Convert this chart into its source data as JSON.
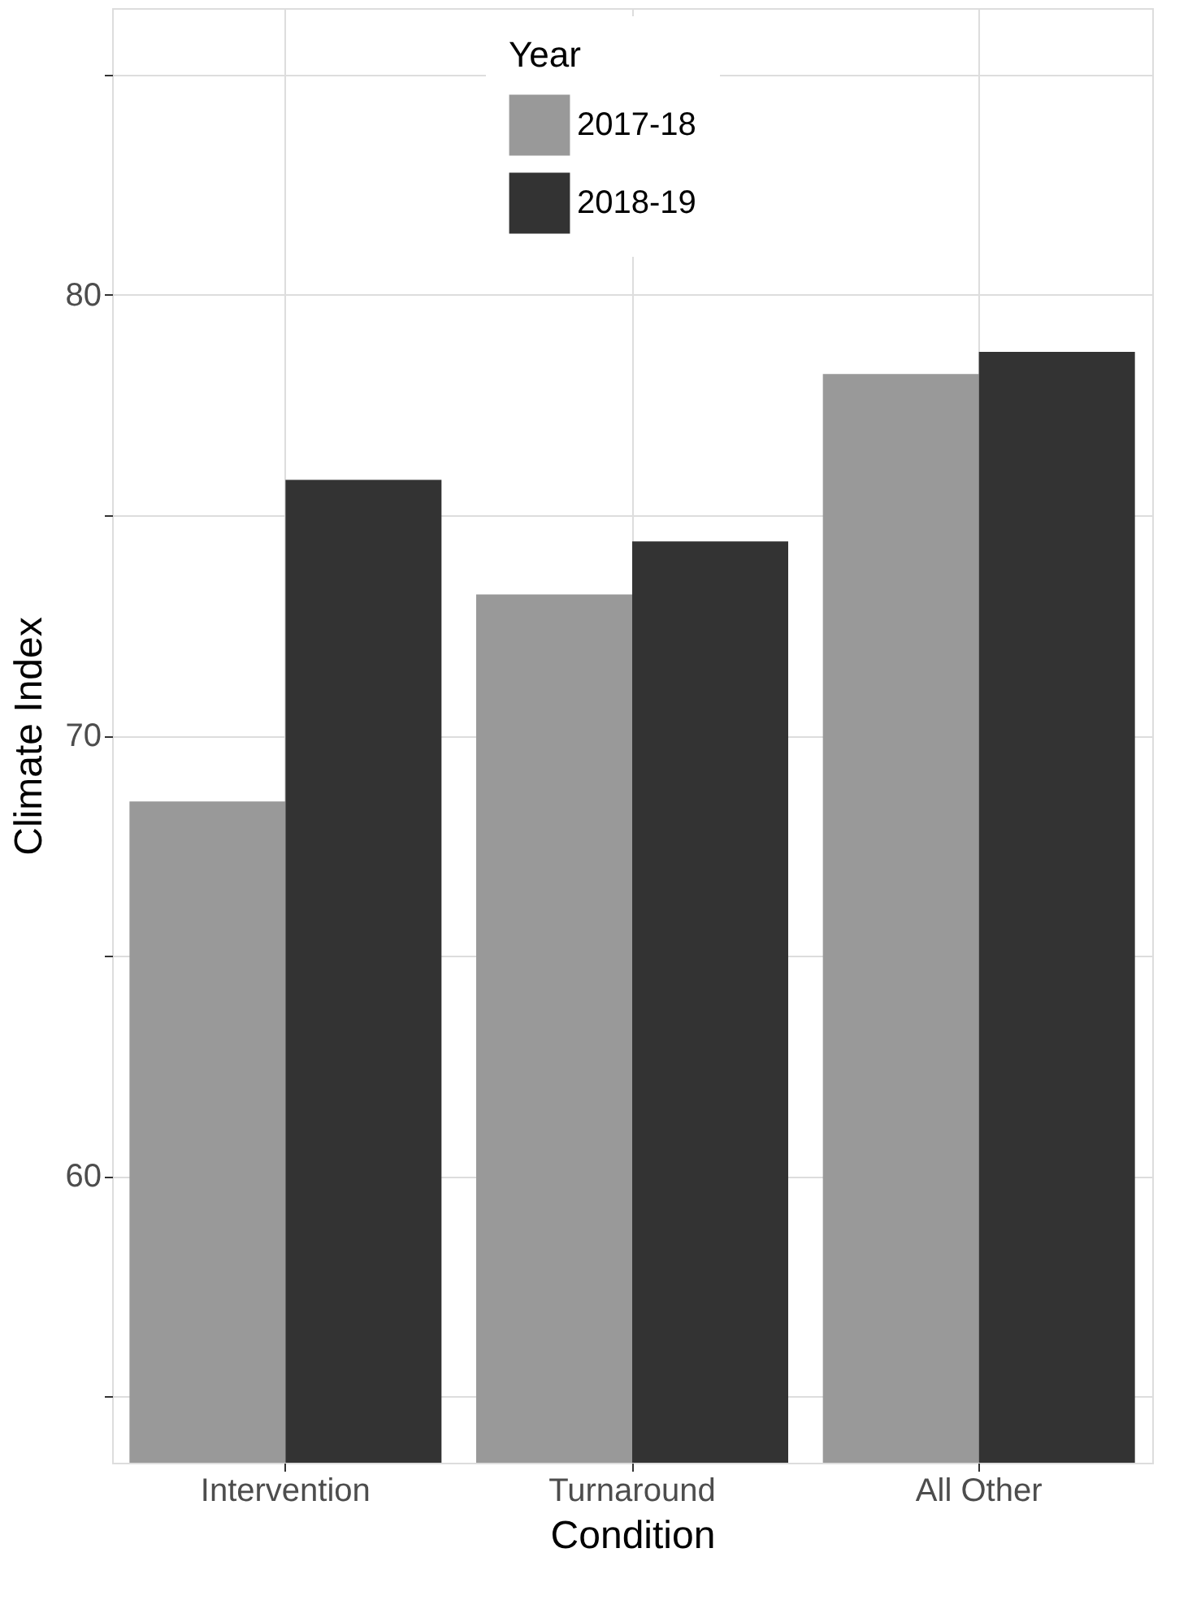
{
  "chart_data": {
    "type": "bar",
    "xlabel": "Condition",
    "ylabel": "Climate Index",
    "legend_title": "Year",
    "categories": [
      "Intervention",
      "Turnaround",
      "All Other"
    ],
    "series": [
      {
        "name": "2017-18",
        "color": "#999999",
        "values": [
          68.5,
          73.2,
          78.2
        ]
      },
      {
        "name": "2018-19",
        "color": "#333333",
        "values": [
          75.8,
          74.4,
          78.7
        ]
      }
    ],
    "ylim": [
      53.5,
      86.5
    ],
    "yticks": [
      {
        "value": 55,
        "label": null
      },
      60,
      {
        "value": 65,
        "label": null
      },
      70,
      {
        "value": 75,
        "label": null
      },
      80,
      {
        "value": 85,
        "label": null
      }
    ],
    "grid": true,
    "legend": "top"
  }
}
